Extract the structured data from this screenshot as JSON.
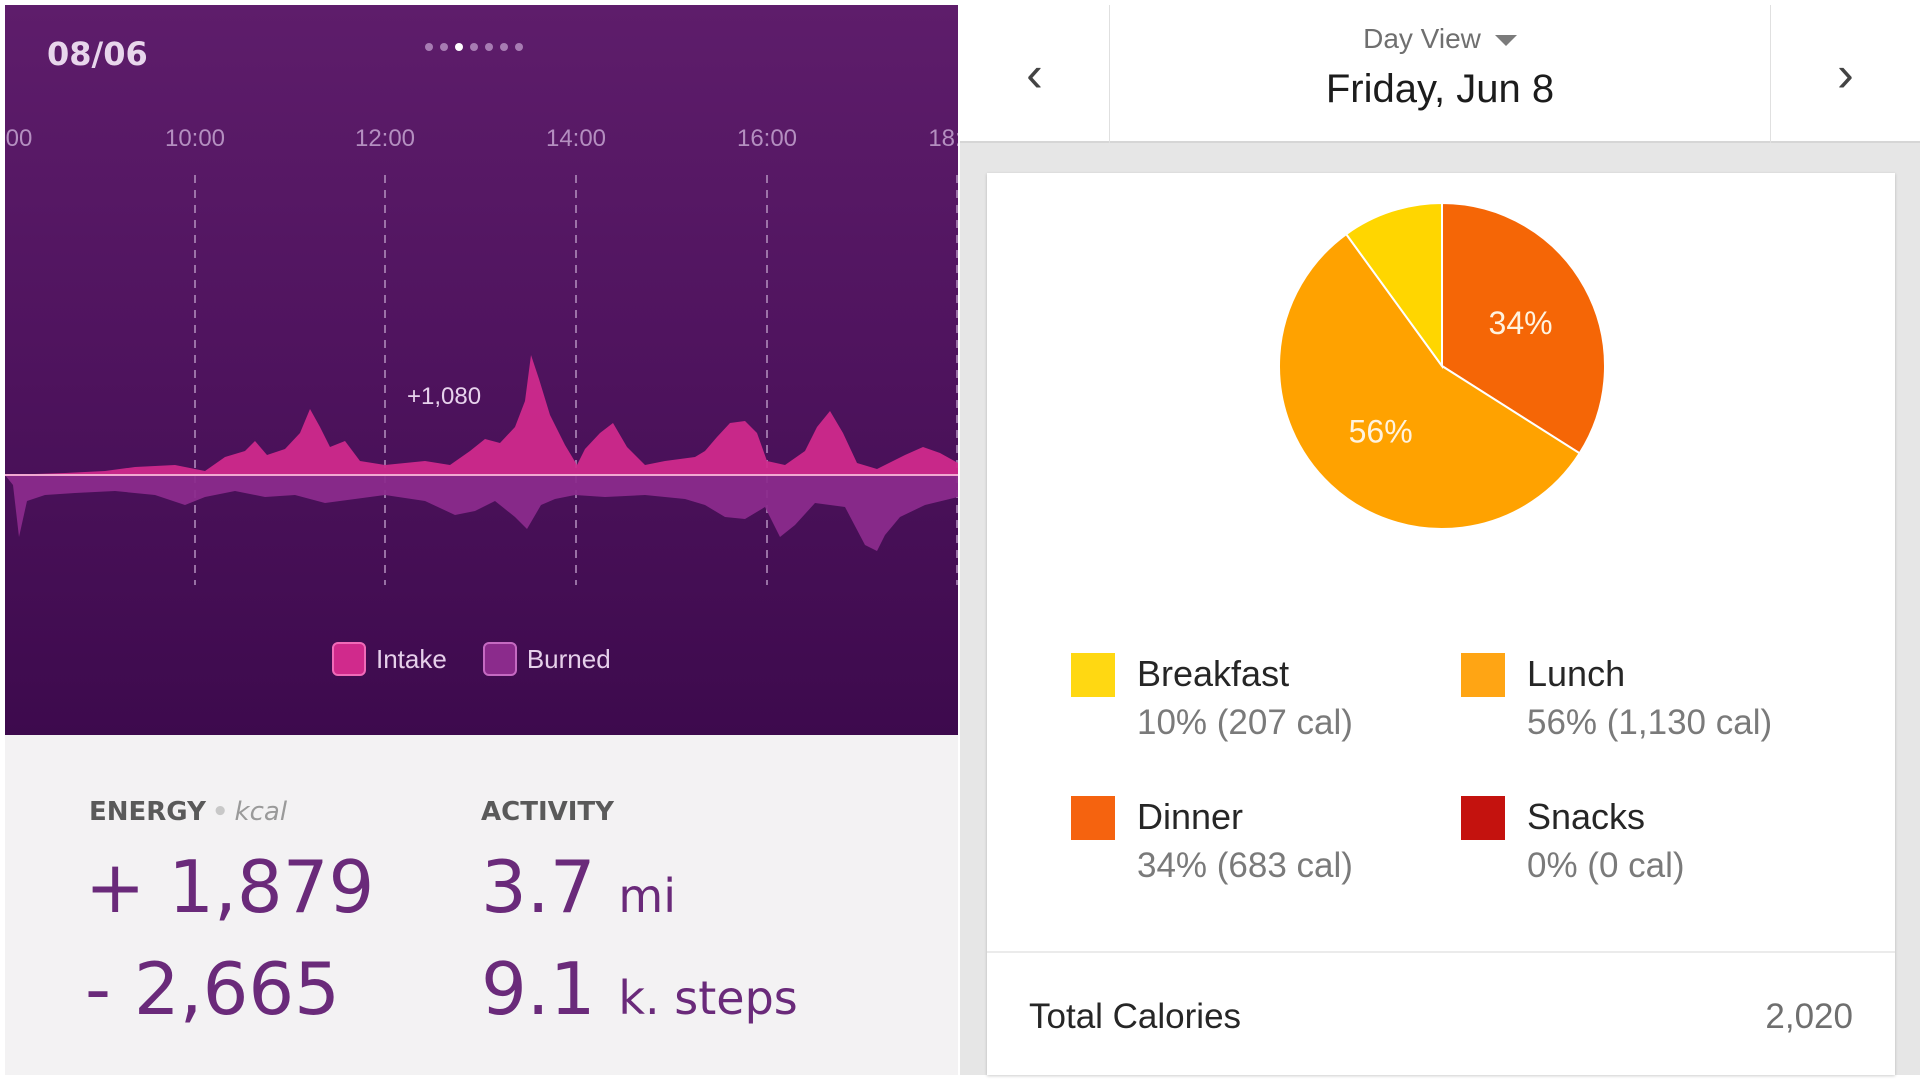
{
  "left": {
    "date": "08/06",
    "pager": {
      "count": 7,
      "active_index": 3
    },
    "time_labels": [
      "00",
      "10:00",
      "12:00",
      "14:00",
      "16:00",
      "18:"
    ],
    "peak_label": "+1,080",
    "legend": {
      "intake": "Intake",
      "burned": "Burned"
    },
    "colors": {
      "intake": "#d02a8c",
      "burned": "#8b2b8c"
    },
    "energy": {
      "title": "ENERGY",
      "unit": "kcal",
      "intake_value": "+ 1,879",
      "burned_value": "- 2,665"
    },
    "activity": {
      "title": "ACTIVITY",
      "distance_value": "3.7",
      "distance_unit": "mi",
      "steps_value": "9.1",
      "steps_unit": "k. steps"
    }
  },
  "right": {
    "view_label": "Day View",
    "day_label": "Friday, Jun 8",
    "chart_data": {
      "type": "pie",
      "slices": [
        {
          "name": "Dinner",
          "value": 34,
          "color": "#f56606",
          "label": "34%"
        },
        {
          "name": "Lunch",
          "value": 56,
          "color": "#ffa200",
          "label": "56%"
        },
        {
          "name": "Breakfast",
          "value": 10,
          "color": "#ffd600",
          "label": ""
        }
      ]
    },
    "meals": [
      {
        "name": "Breakfast",
        "value": "10% (207 cal)",
        "color": "#ffd812"
      },
      {
        "name": "Lunch",
        "value": "56% (1,130 cal)",
        "color": "#ffa514"
      },
      {
        "name": "Dinner",
        "value": "34% (683 cal)",
        "color": "#f5630f"
      },
      {
        "name": "Snacks",
        "value": "0% (0 cal)",
        "color": "#c4120e"
      }
    ],
    "total_label": "Total Calories",
    "total_value": "2,020"
  }
}
